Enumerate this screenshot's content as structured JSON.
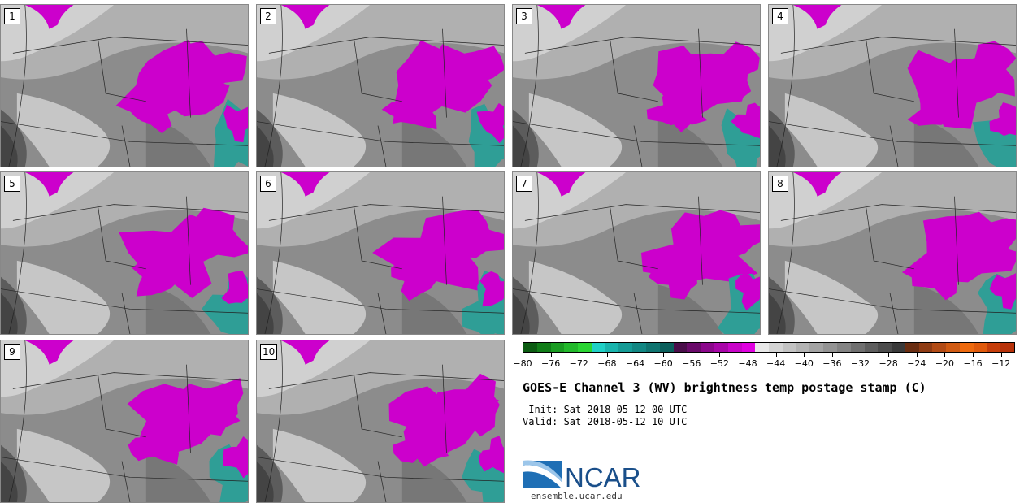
{
  "panels": [
    {
      "label": "1",
      "shift": 0
    },
    {
      "label": "2",
      "shift": 6
    },
    {
      "label": "3",
      "shift": 12
    },
    {
      "label": "4",
      "shift": 18
    },
    {
      "label": "5",
      "shift": 4
    },
    {
      "label": "6",
      "shift": 8
    },
    {
      "label": "7",
      "shift": 14
    },
    {
      "label": "8",
      "shift": 20
    },
    {
      "label": "9",
      "shift": 2
    },
    {
      "label": "10",
      "shift": 10
    }
  ],
  "colorbar": {
    "colors": [
      "#0c5c12",
      "#117d18",
      "#1a9c22",
      "#22b92b",
      "#2ad533",
      "#1fd0c6",
      "#19b4ad",
      "#159b96",
      "#128783",
      "#0f7470",
      "#0b5f5c",
      "#4a0e4a",
      "#6a0a6a",
      "#8b078b",
      "#a805a8",
      "#c804c8",
      "#e001e0",
      "#e8e8e8",
      "#d4d4d4",
      "#c3c3c3",
      "#b3b3b3",
      "#a3a3a3",
      "#939393",
      "#838383",
      "#707070",
      "#5e5e5e",
      "#4c4c4c",
      "#3a3a3a",
      "#6a2e12",
      "#8f3c14",
      "#b24b15",
      "#d05a12",
      "#ee6a0e",
      "#e05a0c",
      "#c63e0a",
      "#b7320a"
    ],
    "tick_labels": [
      "−80",
      "−76",
      "−72",
      "−68",
      "−64",
      "−60",
      "−56",
      "−52",
      "−48",
      "−44",
      "−40",
      "−36",
      "−32",
      "−28",
      "−24",
      "−20",
      "−16",
      "−12"
    ],
    "range": [
      -80,
      -10
    ]
  },
  "title": "GOES-E Channel 3 (WV) brightness temp postage stamp (C)",
  "init": " Init: Sat 2018-05-12 00 UTC",
  "valid": "Valid: Sat 2018-05-12 10 UTC",
  "logo_text": "NCAR",
  "site": "ensemble.ucar.edu",
  "colors": {
    "moist": "#cc00cc",
    "cold": "#2f9e96",
    "dark": "#5c5c5c"
  }
}
